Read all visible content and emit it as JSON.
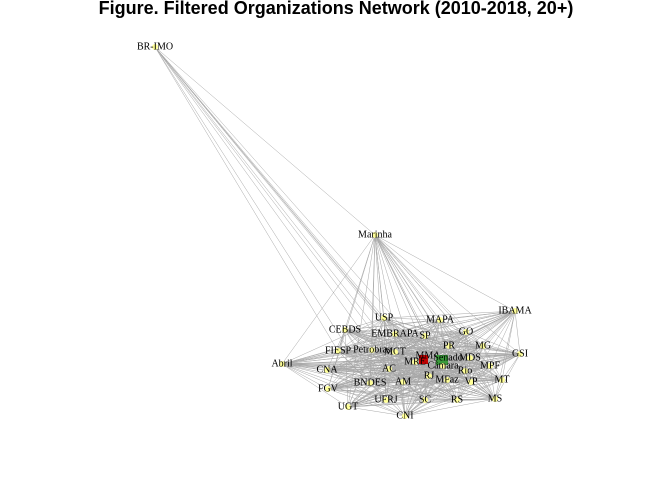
{
  "title": "Figure. Filtered Organizations Network (2010-2018, 20+)",
  "nodes": [
    "BR-IMO",
    "Marinha",
    "IBAMA",
    "USP",
    "MAPA",
    "CEBDS",
    "EMBRAPA",
    "SP",
    "GO",
    "PR",
    "MG",
    "FIESP",
    "Petrobras",
    "MCT",
    "GSI",
    "MMA",
    "Senado",
    "MDS",
    "MRE",
    "Câmara",
    "Abril",
    "CNA",
    "AC",
    "MPF",
    "Rio",
    "RJ",
    "MFaz",
    "VP",
    "MT",
    "AM",
    "BNDES",
    "FGV",
    "UFRJ",
    "SC",
    "RS",
    "MS",
    "UGT",
    "CNI"
  ]
}
